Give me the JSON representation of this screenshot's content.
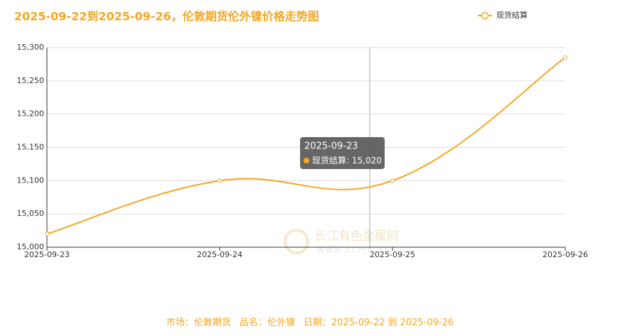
{
  "chart_data": {
    "type": "line",
    "title": "2025-09-22到2025-09-26，伦敦期货伦外镍价格走势图",
    "categories": [
      "2025-09-23",
      "2025-09-24",
      "2025-09-25",
      "2025-09-26"
    ],
    "series": [
      {
        "name": "现货结算",
        "color": "#f5a623",
        "values": [
          15020,
          15100,
          15100,
          15285
        ],
        "value_labels": [
          "15,020",
          null,
          null,
          null
        ]
      }
    ],
    "ylim": [
      15000,
      15300
    ],
    "yticks": [
      {
        "value": 15000,
        "label": "15,000"
      },
      {
        "value": 15050,
        "label": "15,050"
      },
      {
        "value": 15100,
        "label": "15,100"
      },
      {
        "value": 15150,
        "label": "15,150"
      },
      {
        "value": 15200,
        "label": "15,200"
      },
      {
        "value": 15250,
        "label": "15,250"
      },
      {
        "value": 15300,
        "label": "15,300"
      }
    ],
    "grid": true,
    "legend": "top-right",
    "watermark": {
      "name": "长江有色金属网",
      "url": "www.ccmn.cn"
    },
    "footer": {
      "market_label": "市场：",
      "market": "伦敦期货",
      "product_label": "品名：",
      "product": "伦外镍",
      "date_label": "日期：",
      "start": "2025-09-22",
      "sep": "到",
      "end": "2025-09-26"
    }
  }
}
